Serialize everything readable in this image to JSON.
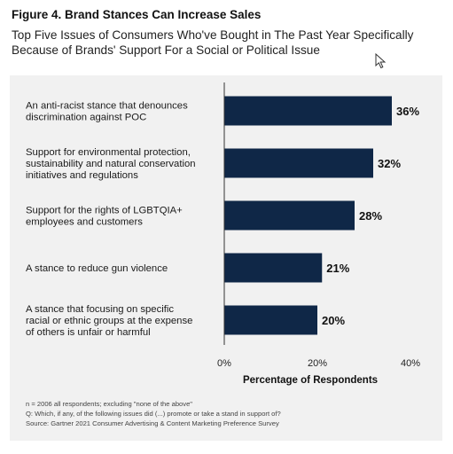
{
  "figure_title": "Figure 4. Brand Stances Can Increase Sales",
  "subtitle_lines": [
    "Top Five Issues of Consumers Who've Bought in The Past Year Specifically",
    "Because of Brands' Support For a Social or Political Issue"
  ],
  "notes": [
    "n = 2006 all respondents; excluding \"none of the above\"",
    "Q: Which, if any, of the following issues did (...) promote or take a stand in support of?",
    "Source: Gartner 2021 Consumer Advertising & Content Marketing Preference Survey"
  ],
  "chart_data": {
    "type": "bar",
    "orientation": "horizontal",
    "categories": [
      [
        "An anti-racist stance that denounces",
        "discrimination against POC"
      ],
      [
        "Support for environmental protection,",
        "sustainability and natural conservation",
        "initiatives and regulations"
      ],
      [
        "Support for the rights of LGBTQIA+",
        "employees and customers"
      ],
      [
        "A stance to reduce gun violence"
      ],
      [
        "A stance that focusing on specific",
        "racial or ethnic groups at the expense",
        "of others is unfair or harmful"
      ]
    ],
    "values": [
      36,
      32,
      28,
      21,
      20
    ],
    "value_labels": [
      "36%",
      "32%",
      "28%",
      "21%",
      "20%"
    ],
    "xlim": [
      0,
      40
    ],
    "ticks": [
      0,
      20,
      40
    ],
    "tick_labels": [
      "0%",
      "20%",
      "40%"
    ],
    "xlabel": "Percentage of Respondents",
    "bar_color": "#0f2747",
    "grid": false
  },
  "colors": {
    "bar": "#0f2747",
    "panel": "#f1f1f1",
    "text": "#1a1a1a"
  },
  "icons": [
    "mouse-cursor-icon"
  ]
}
